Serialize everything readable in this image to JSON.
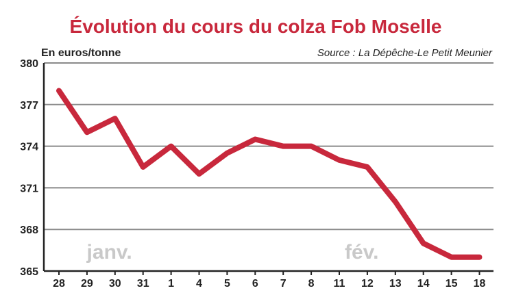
{
  "chart_data": {
    "type": "line",
    "title": "Évolution du cours du colza Fob Moselle",
    "ylabel": "En euros/tonne",
    "source": "Source : La Dépêche-Le Petit Meunier",
    "categories": [
      "28",
      "29",
      "30",
      "31",
      "1",
      "4",
      "5",
      "6",
      "7",
      "8",
      "11",
      "12",
      "13",
      "14",
      "15",
      "18"
    ],
    "series": [
      {
        "values": [
          378,
          375,
          376,
          372.5,
          374,
          372,
          373.5,
          374.5,
          374,
          374,
          373,
          372.5,
          370,
          367,
          366,
          366
        ]
      }
    ],
    "month_labels": [
      {
        "text": "janv.",
        "category_index": 1.8
      },
      {
        "text": "fév.",
        "category_index": 10.8
      }
    ],
    "yticks": [
      365,
      368,
      371,
      374,
      377,
      380
    ],
    "ylim": [
      365,
      380
    ],
    "grid": true,
    "colors": {
      "line": "#c8283c",
      "title": "#c8283c",
      "grid": "#8a8a8a",
      "month": "#c9c9c9"
    }
  }
}
